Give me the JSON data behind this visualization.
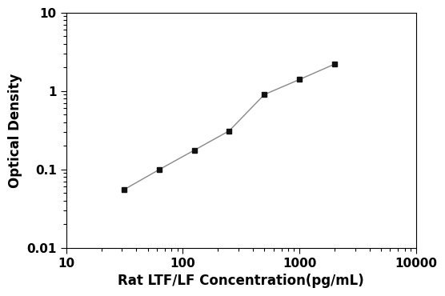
{
  "x": [
    31.25,
    62.5,
    125,
    250,
    500,
    1000,
    2000
  ],
  "y": [
    0.055,
    0.099,
    0.175,
    0.31,
    0.9,
    1.4,
    2.2
  ],
  "xlabel": "Rat LTF/LF Concentration(pg/mL)",
  "ylabel": "Optical Density",
  "xlim": [
    10,
    10000
  ],
  "ylim": [
    0.01,
    10
  ],
  "line_color": "#888888",
  "marker_color": "#111111",
  "marker": "s",
  "marker_size": 5,
  "line_width": 1.0,
  "background_color": "#ffffff",
  "xticks": [
    10,
    100,
    1000,
    10000
  ],
  "yticks": [
    0.01,
    0.1,
    1,
    10
  ],
  "xlabel_fontsize": 12,
  "ylabel_fontsize": 12,
  "tick_labelsize": 11
}
